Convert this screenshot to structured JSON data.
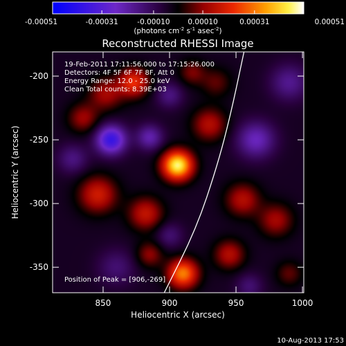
{
  "chart_data": {
    "type": "heatmap",
    "title": "Reconstructed RHESSI Image",
    "xlabel": "Heliocentric X (arcsec)",
    "ylabel": "Heliocentric Y (arcsec)",
    "xlim": [
      812,
      1001
    ],
    "ylim": [
      -370,
      -181
    ],
    "xticks": [
      850,
      900,
      950,
      1000
    ],
    "yticks": [
      -200,
      -250,
      -300,
      -350
    ],
    "colorbar": {
      "min": -0.00051,
      "max": 0.00051,
      "ticks": [
        "-0.00051",
        "-0.00031",
        "-0.00010",
        "0.00010",
        "0.00031",
        "0.00051"
      ],
      "unit_prefix": "(photons cm",
      "unit_sup1": "-2",
      "unit_mid1": " s",
      "unit_sup2": "-1",
      "unit_mid2": " asec",
      "unit_sup3": "-2",
      "unit_suffix": ")"
    },
    "annotations": {
      "time_range": "19-Feb-2011 17:11:56.000 to 17:15:26.000",
      "detectors": "Detectors: 4F 5F 6F 7F 8F, Att 0",
      "energy": "Energy Range: 12.0 - 25.0 keV",
      "clean": "Clean    Total counts: 8.39E+03",
      "peak": "Position of Peak = [906,-269]"
    },
    "limb_curve": [
      [
        896,
        -370
      ],
      [
        920,
        -320
      ],
      [
        936,
        -270
      ],
      [
        946,
        -230
      ],
      [
        956,
        -181
      ]
    ],
    "sources": [
      {
        "x": 906,
        "y": -270,
        "amp": 0.00051,
        "sigma": 8
      },
      {
        "x": 873,
        "y": -205,
        "amp": 0.00026,
        "sigma": 8
      },
      {
        "x": 852,
        "y": -214,
        "amp": 0.00016,
        "sigma": 9
      },
      {
        "x": 835,
        "y": -233,
        "amp": 0.00015,
        "sigma": 8
      },
      {
        "x": 930,
        "y": -238,
        "amp": 0.00018,
        "sigma": 9
      },
      {
        "x": 917,
        "y": -197,
        "amp": 0.00012,
        "sigma": 7
      },
      {
        "x": 846,
        "y": -293,
        "amp": 0.00022,
        "sigma": 10
      },
      {
        "x": 882,
        "y": -308,
        "amp": 0.0002,
        "sigma": 9
      },
      {
        "x": 955,
        "y": -297,
        "amp": 0.00018,
        "sigma": 9
      },
      {
        "x": 980,
        "y": -313,
        "amp": 0.00016,
        "sigma": 9
      },
      {
        "x": 945,
        "y": -340,
        "amp": 0.00018,
        "sigma": 8
      },
      {
        "x": 910,
        "y": -355,
        "amp": 0.00036,
        "sigma": 8
      },
      {
        "x": 885,
        "y": -340,
        "amp": 0.00014,
        "sigma": 7
      },
      {
        "x": 990,
        "y": -355,
        "amp": 0.0001,
        "sigma": 7
      },
      {
        "x": 935,
        "y": -205,
        "amp": 0.0001,
        "sigma": 8
      },
      {
        "x": 856,
        "y": -250,
        "amp": -0.00034,
        "sigma": 8
      },
      {
        "x": 827,
        "y": -265,
        "amp": -0.00012,
        "sigma": 8
      },
      {
        "x": 885,
        "y": -248,
        "amp": -0.00018,
        "sigma": 7
      },
      {
        "x": 965,
        "y": -250,
        "amp": -0.0002,
        "sigma": 10
      },
      {
        "x": 990,
        "y": -205,
        "amp": -0.00014,
        "sigma": 10
      },
      {
        "x": 900,
        "y": -215,
        "amp": -0.00012,
        "sigma": 7
      },
      {
        "x": 900,
        "y": -325,
        "amp": -0.0001,
        "sigma": 7
      },
      {
        "x": 860,
        "y": -350,
        "amp": -0.0001,
        "sigma": 10
      },
      {
        "x": 960,
        "y": -365,
        "amp": -0.0001,
        "sigma": 7
      }
    ]
  },
  "footer": {
    "timestamp": "10-Aug-2013 17:53"
  }
}
